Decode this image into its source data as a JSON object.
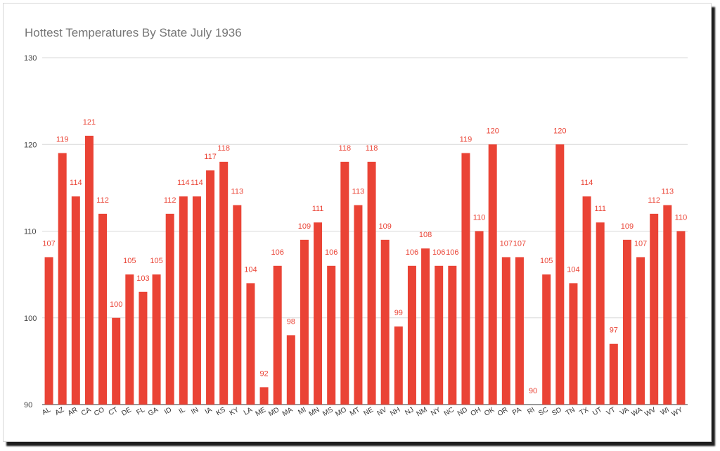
{
  "chart_data": {
    "type": "bar",
    "title": "Hottest Temperatures By State July 1936",
    "xlabel": "",
    "ylabel": "",
    "ylim": [
      90,
      130
    ],
    "yticks": [
      90,
      100,
      110,
      120,
      130
    ],
    "grid": true,
    "legend": "none",
    "bar_color": "#ea4335",
    "label_color": "#ea4335",
    "categories": [
      "AL",
      "AZ",
      "AR",
      "CA",
      "CO",
      "CT",
      "DE",
      "FL",
      "GA",
      "ID",
      "IL",
      "IN",
      "IA",
      "KS",
      "KY",
      "LA",
      "ME",
      "MD",
      "MA",
      "MI",
      "MN",
      "MS",
      "MO",
      "MT",
      "NE",
      "NV",
      "NH",
      "NJ",
      "NM",
      "NY",
      "NC",
      "ND",
      "OH",
      "OK",
      "OR",
      "PA",
      "RI",
      "SC",
      "SD",
      "TN",
      "TX",
      "UT",
      "VT",
      "VA",
      "WA",
      "WV",
      "WI",
      "WY"
    ],
    "values": [
      107,
      119,
      114,
      121,
      112,
      100,
      105,
      103,
      105,
      112,
      114,
      114,
      117,
      118,
      113,
      104,
      92,
      106,
      98,
      109,
      111,
      106,
      118,
      113,
      118,
      109,
      99,
      106,
      108,
      106,
      106,
      119,
      110,
      120,
      107,
      107,
      90,
      105,
      120,
      104,
      114,
      111,
      97,
      109,
      107,
      112,
      113,
      110
    ]
  }
}
